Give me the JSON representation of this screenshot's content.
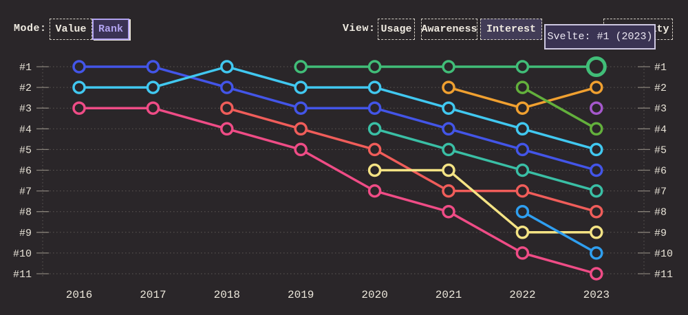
{
  "controls": {
    "mode": {
      "label": "Mode:",
      "options": [
        {
          "label": "Value",
          "selected": false
        },
        {
          "label": "Rank",
          "selected": true
        }
      ]
    },
    "view": {
      "label": "View:",
      "options": [
        {
          "label": "Usage",
          "selected": false
        },
        {
          "label": "Awareness",
          "selected": false
        },
        {
          "label": "Interest",
          "selected": true
        },
        {
          "label": "Positivity",
          "selected": false
        }
      ]
    }
  },
  "tooltip": {
    "text": "Svelte: #1 (2023)"
  },
  "chart_data": {
    "type": "line",
    "subtype": "bump-rank-chart",
    "x": [
      2016,
      2017,
      2018,
      2019,
      2020,
      2021,
      2022,
      2023
    ],
    "y_axis_labels": [
      "#1",
      "#2",
      "#3",
      "#4",
      "#5",
      "#6",
      "#7",
      "#8",
      "#9",
      "#10",
      "#11"
    ],
    "ylim": [
      1,
      11
    ],
    "grid": "dotted-horizontal, left and right rank axes mirrored",
    "legend": "none (colors only; tooltip identifies green series as Svelte)",
    "series": [
      {
        "name": "indigo",
        "color": "#4355e8",
        "ranks": [
          1,
          1,
          2,
          3,
          3,
          4,
          5,
          6
        ]
      },
      {
        "name": "cyan",
        "color": "#41c8f0",
        "ranks": [
          2,
          2,
          1,
          2,
          2,
          3,
          4,
          5
        ]
      },
      {
        "name": "pink",
        "color": "#ef4c86",
        "ranks": [
          3,
          3,
          4,
          5,
          7,
          8,
          10,
          11
        ]
      },
      {
        "name": "coral",
        "color": "#f05d5a",
        "ranks": [
          null,
          null,
          3,
          4,
          5,
          7,
          7,
          8
        ]
      },
      {
        "name": "svelte-green",
        "color": "#41bd78",
        "ranks": [
          null,
          null,
          null,
          1,
          1,
          1,
          1,
          1
        ]
      },
      {
        "name": "teal",
        "color": "#3abfa5",
        "ranks": [
          null,
          null,
          null,
          null,
          4,
          5,
          6,
          7
        ]
      },
      {
        "name": "yellow",
        "color": "#f4e384",
        "ranks": [
          null,
          null,
          null,
          null,
          6,
          6,
          9,
          9
        ]
      },
      {
        "name": "amber",
        "color": "#f0a030",
        "ranks": [
          null,
          null,
          null,
          null,
          null,
          2,
          3,
          2
        ]
      },
      {
        "name": "lime",
        "color": "#63b03c",
        "ranks": [
          null,
          null,
          null,
          null,
          null,
          null,
          2,
          4
        ]
      },
      {
        "name": "sky-blue",
        "color": "#2f9ff0",
        "ranks": [
          null,
          null,
          null,
          null,
          null,
          null,
          8,
          10
        ]
      },
      {
        "name": "purple",
        "color": "#a558cc",
        "ranks": [
          null,
          null,
          null,
          null,
          null,
          null,
          null,
          3
        ]
      }
    ],
    "highlight": {
      "series": "svelte-green",
      "year": 2023,
      "rank": 1,
      "tooltip": "Svelte: #1 (2023)"
    }
  },
  "colors": {
    "background": "#2a2629",
    "grid_dots": "#8a847b",
    "axis_ticks": "#9d978c",
    "axis_text": "#e9e4d8",
    "control_border": "#d7d2c8",
    "accent_purple": "#b2a3f0",
    "selected_view_bg": "#423c57",
    "selected_mode_bg": "#3a3254",
    "tooltip_bg": "#3a3353",
    "tooltip_border": "#cfc9e2"
  }
}
